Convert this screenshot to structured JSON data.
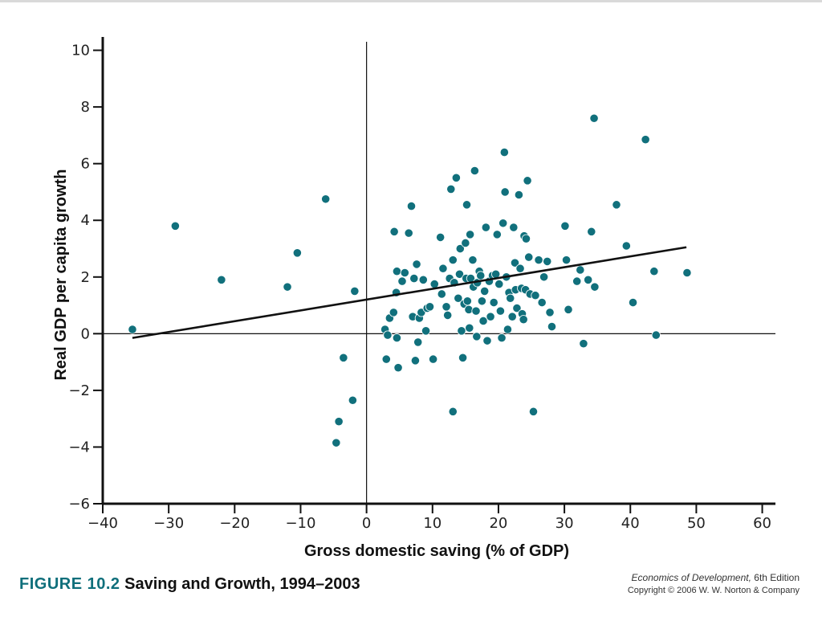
{
  "figure": {
    "number": "FIGURE 10.2",
    "title": "Saving and Growth, 1994–2003"
  },
  "credit": {
    "book": "Economics of Development,",
    "edition": " 6th Edition",
    "copyright": "Copyright © 2006 W. W. Norton & Company"
  },
  "colors": {
    "points": "#11707c",
    "trend": "#111111",
    "axes": "#111111",
    "figure_number": "#0f6f7b"
  },
  "chart_data": {
    "type": "scatter",
    "xlabel": "Gross domestic saving (% of GDP)",
    "ylabel": "Real GDP per capita growth",
    "xlim": [
      -40,
      62
    ],
    "ylim": [
      -6,
      10.3
    ],
    "xticks": [
      -40,
      -30,
      -20,
      -10,
      0,
      10,
      20,
      30,
      40,
      50,
      60
    ],
    "yticks": [
      -6,
      -4,
      -2,
      0,
      2,
      4,
      6,
      8,
      10
    ],
    "xtick_labels": [
      "−40",
      "−30",
      "−20",
      "−10",
      "0",
      "10",
      "20",
      "30",
      "40",
      "50",
      "60"
    ],
    "ytick_labels": [
      "−6",
      "−4",
      "−2",
      "0",
      "2",
      "4",
      "6",
      "8",
      "10"
    ],
    "grid": false,
    "reference_lines": {
      "x": 0,
      "y": 0
    },
    "trend_line": {
      "x": [
        -35.5,
        48.5
      ],
      "y": [
        -0.15,
        3.05
      ]
    },
    "points": [
      [
        -35.5,
        0.15
      ],
      [
        -29,
        3.8
      ],
      [
        -22,
        1.9
      ],
      [
        -12,
        1.65
      ],
      [
        -10.5,
        2.85
      ],
      [
        -6.2,
        4.75
      ],
      [
        -1.8,
        1.5
      ],
      [
        -3.5,
        -0.85
      ],
      [
        -2.1,
        -2.35
      ],
      [
        -4.2,
        -3.1
      ],
      [
        -4.6,
        -3.85
      ],
      [
        3,
        -0.9
      ],
      [
        2.8,
        0.15
      ],
      [
        3.2,
        -0.05
      ],
      [
        3.5,
        0.55
      ],
      [
        4.1,
        0.75
      ],
      [
        4.2,
        3.6
      ],
      [
        4.6,
        2.2
      ],
      [
        4.5,
        1.45
      ],
      [
        4.8,
        -1.2
      ],
      [
        4.6,
        -0.15
      ],
      [
        5.4,
        1.85
      ],
      [
        5.8,
        2.15
      ],
      [
        6.4,
        3.55
      ],
      [
        6.8,
        4.5
      ],
      [
        7,
        0.6
      ],
      [
        7.2,
        1.95
      ],
      [
        7.4,
        -0.95
      ],
      [
        7.6,
        2.45
      ],
      [
        7.8,
        -0.3
      ],
      [
        8,
        0.55
      ],
      [
        8.3,
        0.75
      ],
      [
        8.6,
        1.9
      ],
      [
        9,
        0.1
      ],
      [
        9.2,
        0.9
      ],
      [
        9.6,
        0.95
      ],
      [
        10.1,
        -0.9
      ],
      [
        10.3,
        1.75
      ],
      [
        11.2,
        3.4
      ],
      [
        11.4,
        1.4
      ],
      [
        11.6,
        2.3
      ],
      [
        12.1,
        0.95
      ],
      [
        12.3,
        0.65
      ],
      [
        12.6,
        1.95
      ],
      [
        12.8,
        5.1
      ],
      [
        13.1,
        -2.75
      ],
      [
        13.1,
        2.6
      ],
      [
        13.3,
        1.8
      ],
      [
        13.6,
        5.5
      ],
      [
        13.9,
        1.25
      ],
      [
        14.1,
        2.1
      ],
      [
        14.2,
        3.0
      ],
      [
        14.4,
        0.1
      ],
      [
        14.6,
        -0.85
      ],
      [
        14.8,
        1.05
      ],
      [
        15,
        3.2
      ],
      [
        15.1,
        1.95
      ],
      [
        15.2,
        4.55
      ],
      [
        15.3,
        1.15
      ],
      [
        15.5,
        0.85
      ],
      [
        15.6,
        0.2
      ],
      [
        15.7,
        3.5
      ],
      [
        15.8,
        1.95
      ],
      [
        16.1,
        2.6
      ],
      [
        16.2,
        1.65
      ],
      [
        16.4,
        5.75
      ],
      [
        16.6,
        0.8
      ],
      [
        16.7,
        -0.1
      ],
      [
        16.8,
        1.8
      ],
      [
        17.1,
        2.2
      ],
      [
        17.3,
        2.05
      ],
      [
        17.5,
        1.15
      ],
      [
        17.7,
        0.45
      ],
      [
        17.9,
        1.5
      ],
      [
        18.1,
        3.75
      ],
      [
        18.3,
        -0.25
      ],
      [
        18.6,
        1.85
      ],
      [
        18.8,
        0.6
      ],
      [
        19.1,
        2.05
      ],
      [
        19.3,
        1.1
      ],
      [
        19.6,
        2.1
      ],
      [
        19.8,
        3.5
      ],
      [
        20.1,
        1.75
      ],
      [
        20.3,
        0.8
      ],
      [
        20.5,
        -0.15
      ],
      [
        20.7,
        3.9
      ],
      [
        20.9,
        6.4
      ],
      [
        21,
        5.0
      ],
      [
        21.2,
        2.0
      ],
      [
        21.4,
        0.15
      ],
      [
        21.6,
        1.45
      ],
      [
        21.8,
        1.25
      ],
      [
        22.1,
        0.6
      ],
      [
        22.3,
        3.75
      ],
      [
        22.5,
        2.5
      ],
      [
        22.6,
        1.55
      ],
      [
        22.8,
        0.9
      ],
      [
        23.1,
        4.9
      ],
      [
        23.3,
        2.3
      ],
      [
        23.5,
        1.6
      ],
      [
        23.6,
        0.7
      ],
      [
        23.8,
        0.5
      ],
      [
        23.9,
        3.45
      ],
      [
        24.1,
        1.55
      ],
      [
        24.2,
        3.35
      ],
      [
        24.4,
        5.4
      ],
      [
        24.6,
        2.7
      ],
      [
        24.8,
        1.4
      ],
      [
        25.3,
        -2.75
      ],
      [
        25.6,
        1.35
      ],
      [
        26.1,
        2.6
      ],
      [
        26.6,
        1.1
      ],
      [
        26.9,
        2.0
      ],
      [
        27.4,
        2.55
      ],
      [
        27.8,
        0.75
      ],
      [
        28.1,
        0.25
      ],
      [
        30.1,
        3.8
      ],
      [
        30.3,
        2.6
      ],
      [
        30.6,
        0.85
      ],
      [
        31.9,
        1.85
      ],
      [
        32.4,
        2.25
      ],
      [
        32.9,
        -0.35
      ],
      [
        33.6,
        1.9
      ],
      [
        34.1,
        3.6
      ],
      [
        34.6,
        1.65
      ],
      [
        34.5,
        7.6
      ],
      [
        37.9,
        4.55
      ],
      [
        39.4,
        3.1
      ],
      [
        40.4,
        1.1
      ],
      [
        42.3,
        6.85
      ],
      [
        43.6,
        2.2
      ],
      [
        43.9,
        -0.05
      ],
      [
        48.6,
        2.15
      ]
    ]
  }
}
